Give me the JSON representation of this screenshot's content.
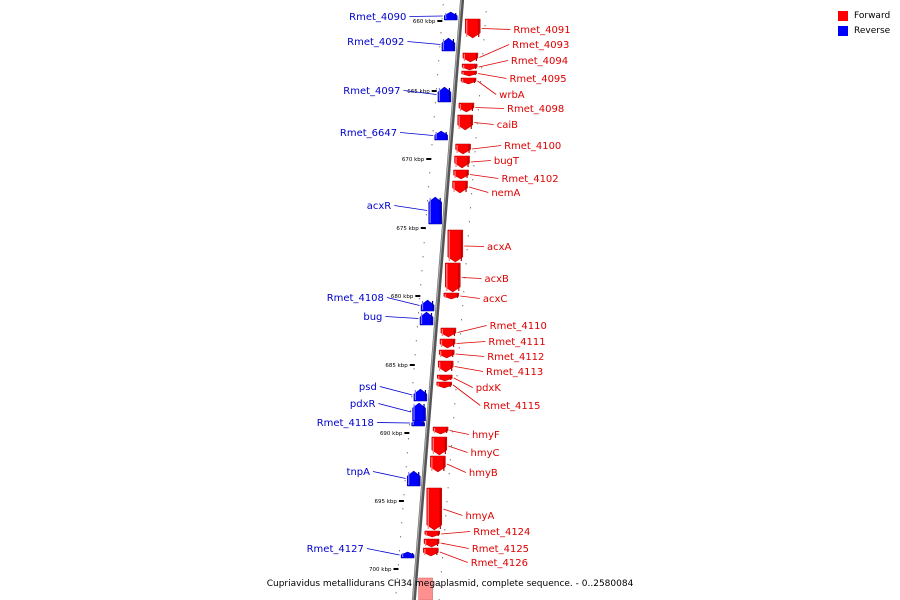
{
  "legend": {
    "forward": "Forward",
    "reverse": "Reverse",
    "forward_color": "#ff0000",
    "reverse_color": "#0000ff"
  },
  "caption": "Cupriavidus metallidurans CH34 megaplasmid, complete sequence. - 0..2580084",
  "ticks": [
    "660 kbp",
    "665 kbp",
    "670 kbp",
    "675 kbp",
    "680 kbp",
    "685 kbp",
    "690 kbp",
    "695 kbp",
    "700 kbp"
  ],
  "forward_genes": [
    "Rmet_4091",
    "Rmet_4093",
    "Rmet_4094",
    "Rmet_4095",
    "wrbA",
    "Rmet_4098",
    "caiB",
    "Rmet_4100",
    "bugT",
    "Rmet_4102",
    "nemA",
    "acxA",
    "acxB",
    "acxC",
    "Rmet_4110",
    "Rmet_4111",
    "Rmet_4112",
    "Rmet_4113",
    "pdxK",
    "Rmet_4115",
    "hmyF",
    "hmyC",
    "hmyB",
    "hmyA",
    "Rmet_4124",
    "Rmet_4125",
    "Rmet_4126"
  ],
  "reverse_genes": [
    "Rmet_4090",
    "Rmet_4092",
    "Rmet_4097",
    "Rmet_6647",
    "acxR",
    "Rmet_4108",
    "bug",
    "psd",
    "pdxR",
    "Rmet_4118",
    "tnpA",
    "Rmet_4127"
  ]
}
